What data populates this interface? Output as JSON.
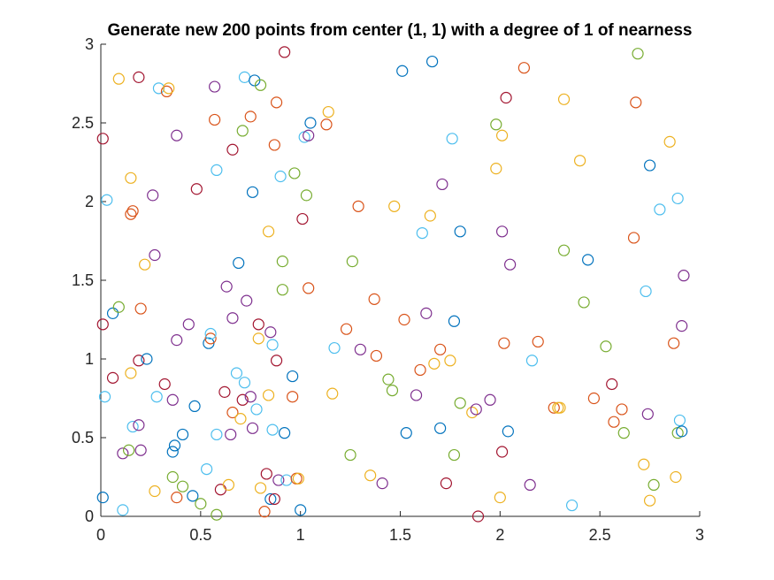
{
  "chart_data": {
    "type": "scatter",
    "title": "Generate new 200 points from center (1, 1) with a degree of 1 of nearness",
    "xlabel": "",
    "ylabel": "",
    "xlim": [
      0,
      3
    ],
    "ylim": [
      0,
      3
    ],
    "x_ticks": [
      "0",
      "0.5",
      "1",
      "1.5",
      "2",
      "2.5",
      "3"
    ],
    "y_ticks": [
      "0",
      "0.5",
      "1",
      "1.5",
      "2",
      "2.5",
      "3"
    ],
    "grid": false,
    "marker": "circle-open",
    "colors": [
      "#0072BD",
      "#D95319",
      "#EDB120",
      "#7E2F8E",
      "#77AC30",
      "#4DBEEE",
      "#A2142F"
    ],
    "points": [
      [
        0.01,
        0.12,
        0
      ],
      [
        0.02,
        0.76,
        5
      ],
      [
        0.01,
        1.22,
        6
      ],
      [
        0.01,
        2.4,
        6
      ],
      [
        0.03,
        2.01,
        5
      ],
      [
        0.06,
        0.88,
        6
      ],
      [
        0.06,
        1.29,
        0
      ],
      [
        0.09,
        1.33,
        4
      ],
      [
        0.09,
        2.78,
        2
      ],
      [
        0.11,
        0.04,
        5
      ],
      [
        0.11,
        0.4,
        3
      ],
      [
        0.14,
        0.42,
        4
      ],
      [
        0.15,
        0.91,
        2
      ],
      [
        0.15,
        1.92,
        1
      ],
      [
        0.16,
        1.94,
        1
      ],
      [
        0.15,
        2.15,
        2
      ],
      [
        0.16,
        0.57,
        5
      ],
      [
        0.19,
        0.58,
        3
      ],
      [
        0.2,
        0.42,
        3
      ],
      [
        0.19,
        0.99,
        6
      ],
      [
        0.2,
        1.32,
        1
      ],
      [
        0.19,
        2.79,
        6
      ],
      [
        0.22,
        1.6,
        2
      ],
      [
        0.23,
        1.0,
        0
      ],
      [
        0.26,
        2.04,
        3
      ],
      [
        0.27,
        1.66,
        3
      ],
      [
        0.27,
        0.16,
        2
      ],
      [
        0.28,
        0.76,
        5
      ],
      [
        0.29,
        2.72,
        5
      ],
      [
        0.32,
        0.84,
        6
      ],
      [
        0.33,
        2.7,
        1
      ],
      [
        0.34,
        2.72,
        2
      ],
      [
        0.36,
        0.74,
        3
      ],
      [
        0.37,
        0.45,
        0
      ],
      [
        0.36,
        0.41,
        0
      ],
      [
        0.36,
        0.25,
        4
      ],
      [
        0.38,
        0.12,
        1
      ],
      [
        0.38,
        1.12,
        3
      ],
      [
        0.38,
        2.42,
        3
      ],
      [
        0.41,
        0.19,
        4
      ],
      [
        0.41,
        0.52,
        0
      ],
      [
        0.44,
        1.22,
        3
      ],
      [
        0.46,
        0.13,
        0
      ],
      [
        0.47,
        0.7,
        0
      ],
      [
        0.48,
        2.08,
        6
      ],
      [
        0.5,
        0.08,
        4
      ],
      [
        0.53,
        0.3,
        5
      ],
      [
        0.54,
        1.1,
        0
      ],
      [
        0.55,
        1.13,
        1
      ],
      [
        0.55,
        1.16,
        5
      ],
      [
        0.57,
        2.52,
        1
      ],
      [
        0.57,
        2.73,
        3
      ],
      [
        0.58,
        0.52,
        5
      ],
      [
        0.58,
        2.2,
        5
      ],
      [
        0.58,
        0.01,
        4
      ],
      [
        0.6,
        0.17,
        6
      ],
      [
        0.62,
        0.79,
        6
      ],
      [
        0.63,
        1.46,
        3
      ],
      [
        0.64,
        0.2,
        2
      ],
      [
        0.65,
        0.52,
        3
      ],
      [
        0.66,
        2.33,
        6
      ],
      [
        0.66,
        1.26,
        3
      ],
      [
        0.66,
        0.66,
        1
      ],
      [
        0.68,
        0.91,
        5
      ],
      [
        0.69,
        1.61,
        0
      ],
      [
        0.7,
        0.62,
        2
      ],
      [
        0.71,
        2.45,
        4
      ],
      [
        0.71,
        0.74,
        6
      ],
      [
        0.72,
        2.79,
        5
      ],
      [
        0.72,
        0.85,
        5
      ],
      [
        0.73,
        1.37,
        3
      ],
      [
        0.75,
        0.76,
        3
      ],
      [
        0.75,
        2.54,
        1
      ],
      [
        0.76,
        2.06,
        0
      ],
      [
        0.76,
        0.56,
        3
      ],
      [
        0.77,
        2.77,
        0
      ],
      [
        0.78,
        0.68,
        5
      ],
      [
        0.79,
        1.13,
        2
      ],
      [
        0.79,
        1.22,
        6
      ],
      [
        0.8,
        0.18,
        2
      ],
      [
        0.8,
        2.74,
        4
      ],
      [
        0.82,
        0.03,
        1
      ],
      [
        0.83,
        0.27,
        6
      ],
      [
        0.84,
        1.81,
        2
      ],
      [
        0.84,
        0.77,
        2
      ],
      [
        0.85,
        0.11,
        0
      ],
      [
        0.85,
        1.17,
        3
      ],
      [
        0.86,
        1.09,
        5
      ],
      [
        0.86,
        0.55,
        5
      ],
      [
        0.87,
        0.11,
        6
      ],
      [
        0.87,
        2.36,
        1
      ],
      [
        0.88,
        2.63,
        1
      ],
      [
        0.88,
        0.99,
        6
      ],
      [
        0.89,
        0.23,
        3
      ],
      [
        0.9,
        2.16,
        5
      ],
      [
        0.91,
        1.62,
        4
      ],
      [
        0.91,
        1.44,
        4
      ],
      [
        0.92,
        2.95,
        6
      ],
      [
        0.92,
        0.53,
        0
      ],
      [
        0.93,
        0.23,
        5
      ],
      [
        0.96,
        0.89,
        0
      ],
      [
        0.96,
        0.76,
        1
      ],
      [
        0.97,
        2.18,
        4
      ],
      [
        0.98,
        0.24,
        1
      ],
      [
        0.99,
        0.24,
        2
      ],
      [
        1.0,
        0.04,
        0
      ],
      [
        1.01,
        1.89,
        6
      ],
      [
        1.02,
        2.41,
        5
      ],
      [
        1.03,
        2.04,
        4
      ],
      [
        1.04,
        1.45,
        1
      ],
      [
        1.04,
        2.42,
        3
      ],
      [
        1.05,
        2.5,
        0
      ],
      [
        1.13,
        2.49,
        1
      ],
      [
        1.14,
        2.57,
        2
      ],
      [
        1.16,
        0.78,
        2
      ],
      [
        1.17,
        1.07,
        5
      ],
      [
        1.23,
        1.19,
        1
      ],
      [
        1.25,
        0.39,
        4
      ],
      [
        1.26,
        1.62,
        4
      ],
      [
        1.29,
        1.97,
        1
      ],
      [
        1.3,
        1.06,
        3
      ],
      [
        1.35,
        0.26,
        2
      ],
      [
        1.37,
        1.38,
        1
      ],
      [
        1.38,
        1.02,
        1
      ],
      [
        1.41,
        0.21,
        3
      ],
      [
        1.44,
        0.87,
        4
      ],
      [
        1.46,
        0.8,
        4
      ],
      [
        1.47,
        1.97,
        2
      ],
      [
        1.51,
        2.83,
        0
      ],
      [
        1.52,
        1.25,
        1
      ],
      [
        1.53,
        0.53,
        0
      ],
      [
        1.58,
        0.77,
        3
      ],
      [
        1.6,
        0.93,
        1
      ],
      [
        1.61,
        1.8,
        5
      ],
      [
        1.63,
        1.29,
        3
      ],
      [
        1.65,
        1.91,
        2
      ],
      [
        1.66,
        2.89,
        0
      ],
      [
        1.67,
        0.97,
        2
      ],
      [
        1.7,
        1.06,
        1
      ],
      [
        1.7,
        0.56,
        0
      ],
      [
        1.71,
        2.11,
        3
      ],
      [
        1.73,
        0.21,
        6
      ],
      [
        1.75,
        0.99,
        2
      ],
      [
        1.76,
        2.4,
        5
      ],
      [
        1.77,
        1.24,
        0
      ],
      [
        1.77,
        0.39,
        4
      ],
      [
        1.8,
        1.81,
        0
      ],
      [
        1.8,
        0.72,
        4
      ],
      [
        1.86,
        0.66,
        2
      ],
      [
        1.88,
        0.68,
        3
      ],
      [
        1.89,
        0.0,
        6
      ],
      [
        1.95,
        0.74,
        3
      ],
      [
        1.98,
        2.49,
        4
      ],
      [
        1.98,
        2.21,
        2
      ],
      [
        2.0,
        0.12,
        2
      ],
      [
        2.01,
        0.41,
        6
      ],
      [
        2.01,
        2.42,
        2
      ],
      [
        2.01,
        1.81,
        3
      ],
      [
        2.02,
        1.1,
        1
      ],
      [
        2.03,
        2.66,
        6
      ],
      [
        2.04,
        0.54,
        0
      ],
      [
        2.05,
        1.6,
        3
      ],
      [
        2.12,
        2.85,
        1
      ],
      [
        2.15,
        0.2,
        3
      ],
      [
        2.16,
        0.99,
        5
      ],
      [
        2.19,
        1.11,
        1
      ],
      [
        2.27,
        0.69,
        1
      ],
      [
        2.29,
        0.69,
        2
      ],
      [
        2.32,
        2.65,
        2
      ],
      [
        2.32,
        1.69,
        4
      ],
      [
        2.36,
        0.07,
        5
      ],
      [
        2.4,
        2.26,
        2
      ],
      [
        2.42,
        1.36,
        4
      ],
      [
        2.44,
        1.63,
        0
      ],
      [
        2.47,
        0.75,
        1
      ],
      [
        2.53,
        1.08,
        4
      ],
      [
        2.56,
        0.84,
        6
      ],
      [
        2.57,
        0.6,
        1
      ],
      [
        2.61,
        0.68,
        1
      ],
      [
        2.62,
        0.53,
        4
      ],
      [
        2.67,
        1.77,
        1
      ],
      [
        2.68,
        2.63,
        1
      ],
      [
        2.69,
        2.94,
        4
      ],
      [
        2.72,
        0.33,
        2
      ],
      [
        2.73,
        1.43,
        5
      ],
      [
        2.74,
        0.65,
        3
      ],
      [
        2.75,
        2.23,
        0
      ],
      [
        2.75,
        0.1,
        2
      ],
      [
        2.77,
        0.2,
        4
      ],
      [
        2.8,
        1.95,
        5
      ],
      [
        2.85,
        2.38,
        2
      ],
      [
        2.87,
        1.1,
        1
      ],
      [
        2.88,
        0.25,
        2
      ],
      [
        2.89,
        2.02,
        5
      ],
      [
        2.89,
        0.53,
        4
      ],
      [
        2.9,
        0.61,
        5
      ],
      [
        2.91,
        0.54,
        0
      ],
      [
        2.91,
        1.21,
        3
      ],
      [
        2.92,
        1.53,
        3
      ],
      [
        2.3,
        0.69,
        2
      ]
    ]
  }
}
